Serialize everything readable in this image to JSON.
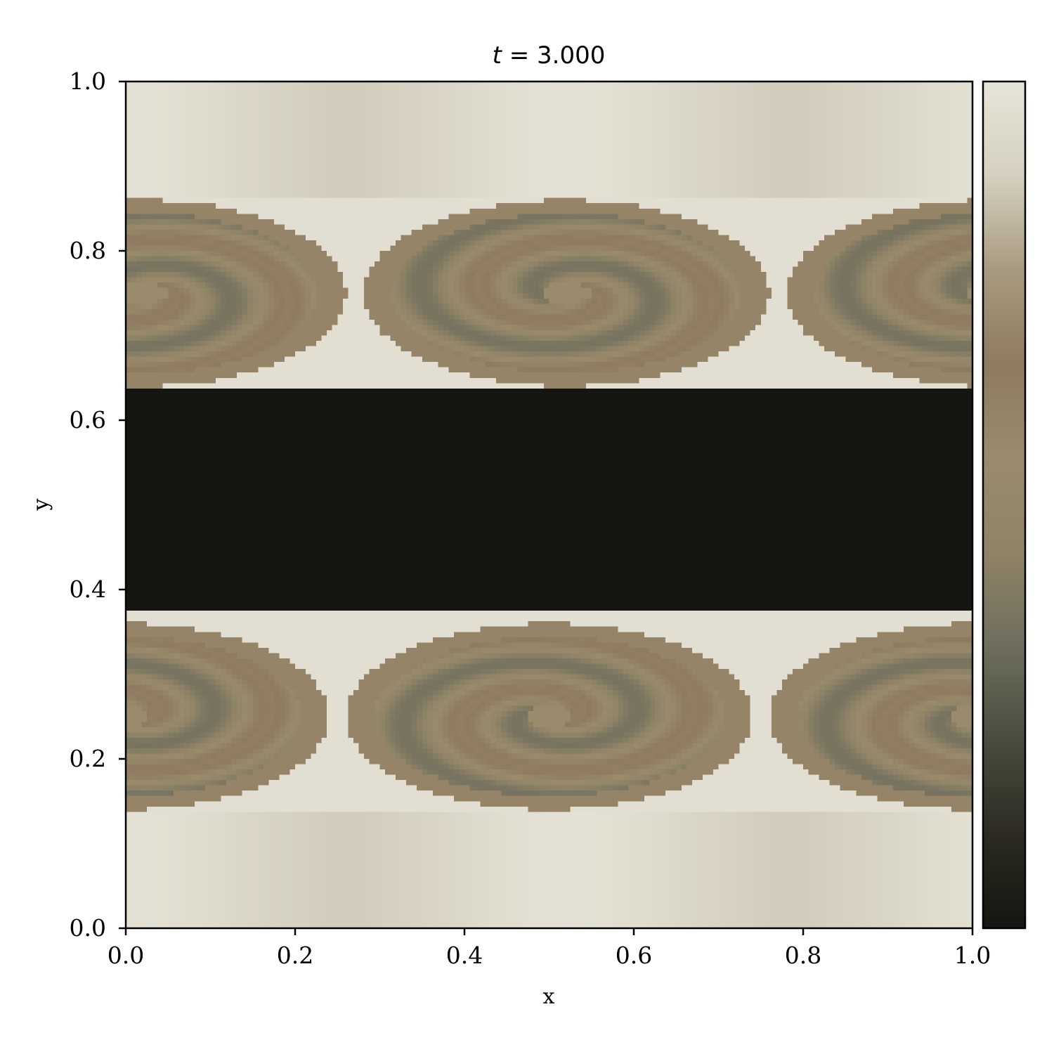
{
  "chart_data": {
    "type": "heatmap",
    "title": "t = 3.000",
    "title_var": "t",
    "title_rest": " = 3.000",
    "xlabel": "x",
    "ylabel": "y",
    "xlim": [
      0.0,
      1.0
    ],
    "ylim": [
      0.0,
      1.0
    ],
    "xticks": [
      "0.0",
      "0.2",
      "0.4",
      "0.6",
      "0.8",
      "1.0"
    ],
    "yticks": [
      "0.0",
      "0.2",
      "0.4",
      "0.6",
      "0.8",
      "1.0"
    ],
    "xtick_values": [
      0.0,
      0.2,
      0.4,
      0.6,
      0.8,
      1.0
    ],
    "ytick_values": [
      0.0,
      0.2,
      0.4,
      0.6,
      0.8,
      1.0
    ],
    "field": {
      "description_free": true,
      "band_center": 0.505,
      "band_halfwidth": 0.13,
      "vortex_layers": [
        {
          "y": 0.75,
          "centers_x": [
            0.0,
            0.5,
            1.0
          ],
          "slope_sign": -1
        },
        {
          "y": 0.25,
          "centers_x": [
            0.0,
            0.5,
            1.0
          ],
          "slope_sign": 1
        }
      ]
    },
    "colorbar": {
      "show": true,
      "ticks": [],
      "colors": [
        "#151611",
        "#2c2a22",
        "#4b4c3e",
        "#6f6e5e",
        "#8f8367",
        "#9a8b6c",
        "#8e7a60",
        "#a89a80",
        "#d5d0c0",
        "#e7e5d8"
      ]
    }
  }
}
